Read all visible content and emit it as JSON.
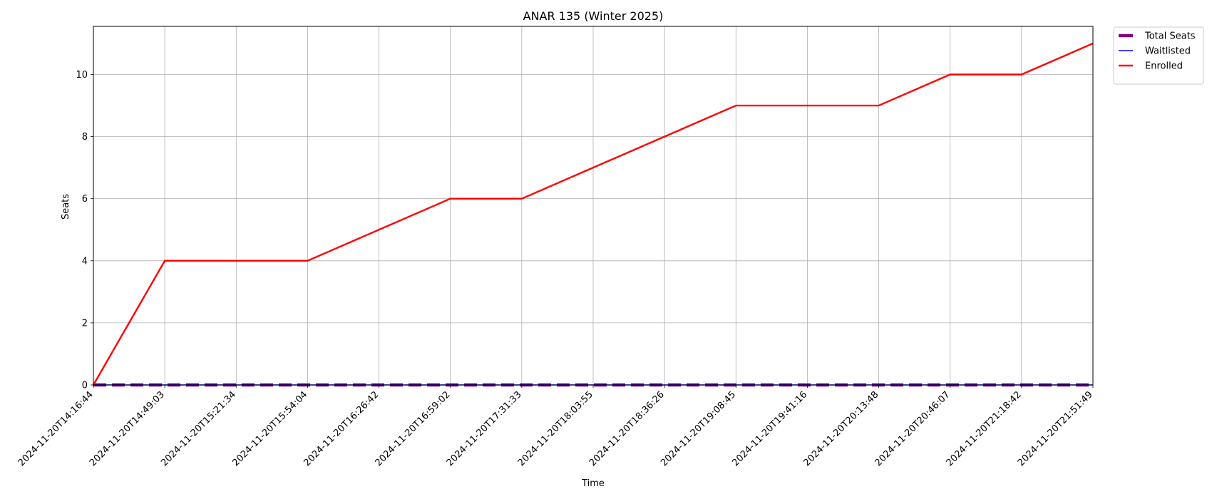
{
  "chart_data": {
    "type": "line",
    "title": "ANAR 135 (Winter 2025)",
    "xlabel": "Time",
    "ylabel": "Seats",
    "x": [
      "2024-11-20T14:16:44",
      "2024-11-20T14:49:03",
      "2024-11-20T15:21:34",
      "2024-11-20T15:54:04",
      "2024-11-20T16:26:42",
      "2024-11-20T16:59:02",
      "2024-11-20T17:31:33",
      "2024-11-20T18:03:55",
      "2024-11-20T18:36:26",
      "2024-11-20T19:08:45",
      "2024-11-20T19:41:16",
      "2024-11-20T20:13:48",
      "2024-11-20T20:46:07",
      "2024-11-20T21:18:42",
      "2024-11-20T21:51:49"
    ],
    "ylim": [
      0,
      11.55
    ],
    "yticks": [
      0,
      2,
      4,
      6,
      8,
      10
    ],
    "grid": true,
    "legend_position": "outside top-right",
    "series": [
      {
        "name": "Total Seats",
        "color": "#800080",
        "style": "dashed",
        "values": [
          0,
          0,
          0,
          0,
          0,
          0,
          0,
          0,
          0,
          0,
          0,
          0,
          0,
          0,
          0
        ]
      },
      {
        "name": "Waitlisted",
        "color": "#0000ff",
        "style": "solid",
        "values": [
          0,
          0,
          0,
          0,
          0,
          0,
          0,
          0,
          0,
          0,
          0,
          0,
          0,
          0,
          0
        ]
      },
      {
        "name": "Enrolled",
        "color": "#ff0000",
        "style": "solid",
        "values": [
          0,
          4,
          4,
          4,
          5,
          6,
          6,
          7,
          8,
          9,
          9,
          9,
          10,
          10,
          11
        ]
      }
    ]
  }
}
